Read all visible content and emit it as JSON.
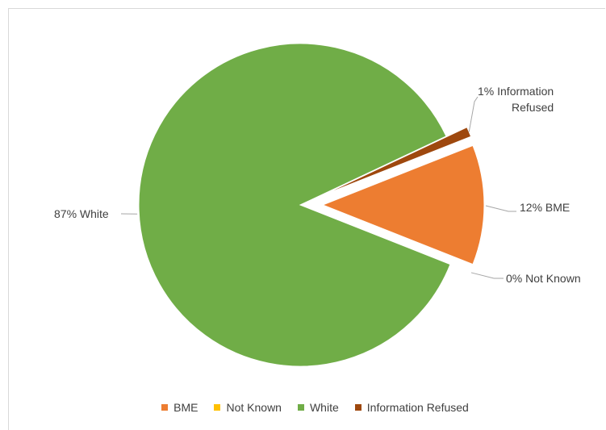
{
  "chart_data": {
    "type": "pie",
    "title": "",
    "exploded": true,
    "legend_position": "bottom",
    "slices": [
      {
        "name": "BME",
        "value": 12,
        "label": "12% BME",
        "color": "#ed7d31"
      },
      {
        "name": "Not Known",
        "value": 0,
        "label": "0% Not Known",
        "color": "#ffc000"
      },
      {
        "name": "White",
        "value": 87,
        "label": "87% White",
        "color": "#70ad47"
      },
      {
        "name": "Information Refused",
        "value": 1,
        "label": "1% Information Refused",
        "color": "#9e480e"
      }
    ],
    "data_labels": {
      "bme": "12% BME",
      "not_known": "0% Not Known",
      "white": "87% White",
      "refused_line1": "1% Information",
      "refused_line2": "Refused"
    },
    "legend": [
      {
        "name": "BME",
        "color": "#ed7d31"
      },
      {
        "name": "Not Known",
        "color": "#ffc000"
      },
      {
        "name": "White",
        "color": "#70ad47"
      },
      {
        "name": "Information Refused",
        "color": "#9e480e"
      }
    ]
  }
}
